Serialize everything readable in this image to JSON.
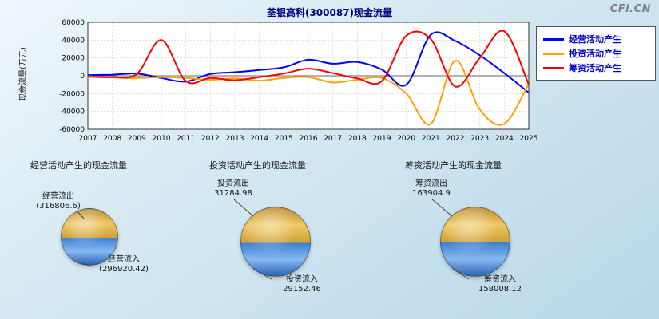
{
  "brand": "CFi.CN",
  "chart_data": [
    {
      "type": "line",
      "title": "荃银高科(300087)现金流量",
      "ylabel": "现金流量(万元)",
      "xlabel": "",
      "x": [
        "2007",
        "2008",
        "2009",
        "2010",
        "2011",
        "2012",
        "2013",
        "2014",
        "2015",
        "2016",
        "2017",
        "2018",
        "2019",
        "2020",
        "2021",
        "2022",
        "2023",
        "2024",
        "2025"
      ],
      "ylim": [
        -60000,
        60000
      ],
      "yticks": [
        60000,
        40000,
        20000,
        0,
        -20000,
        -40000,
        -60000
      ],
      "grid": true,
      "legend_position": "right",
      "series": [
        {
          "name": "经营活动产生",
          "color": "#0000ff",
          "values": [
            800,
            1200,
            2500,
            -2500,
            -6500,
            2000,
            4000,
            6500,
            9500,
            18000,
            13500,
            15500,
            7000,
            -10000,
            46000,
            39000,
            23000,
            3000,
            -19000
          ]
        },
        {
          "name": "投资活动产生",
          "color": "#ffa200",
          "values": [
            -500,
            -2000,
            -2500,
            -1500,
            -2500,
            -4500,
            -3000,
            -5500,
            -2500,
            -1500,
            -7500,
            -4500,
            -2500,
            -20000,
            -54000,
            17000,
            -38000,
            -54000,
            -9000
          ]
        },
        {
          "name": "筹资活动产生",
          "color": "#ff0000",
          "values": [
            -1000,
            -1500,
            2000,
            40000,
            -6000,
            -2500,
            -5000,
            -1500,
            2500,
            8000,
            3000,
            -3000,
            -6000,
            45000,
            41000,
            -12000,
            20000,
            50000,
            -10000
          ]
        }
      ]
    },
    {
      "type": "pie",
      "title": "经营活动产生的现金流量",
      "slices": [
        {
          "label": "经营流出",
          "value": 316806.6,
          "display": "(316806.6)",
          "color": "#d4a23c"
        },
        {
          "label": "经营流入",
          "value": 296920.42,
          "display": "(296920.42)",
          "color": "#4a8ad8"
        }
      ]
    },
    {
      "type": "pie",
      "title": "投资活动产生的现金流量",
      "slices": [
        {
          "label": "投资流出",
          "value": 31284.98,
          "display": "31284.98",
          "color": "#d4a23c"
        },
        {
          "label": "投资流入",
          "value": 29152.46,
          "display": "29152.46",
          "color": "#4a8ad8"
        }
      ]
    },
    {
      "type": "pie",
      "title": "筹资活动产生的现金流量",
      "slices": [
        {
          "label": "筹资流出",
          "value": 163904.9,
          "display": "163904.9",
          "color": "#d4a23c"
        },
        {
          "label": "筹资流入",
          "value": 158008.12,
          "display": "158008.12",
          "color": "#4a8ad8"
        }
      ]
    }
  ]
}
